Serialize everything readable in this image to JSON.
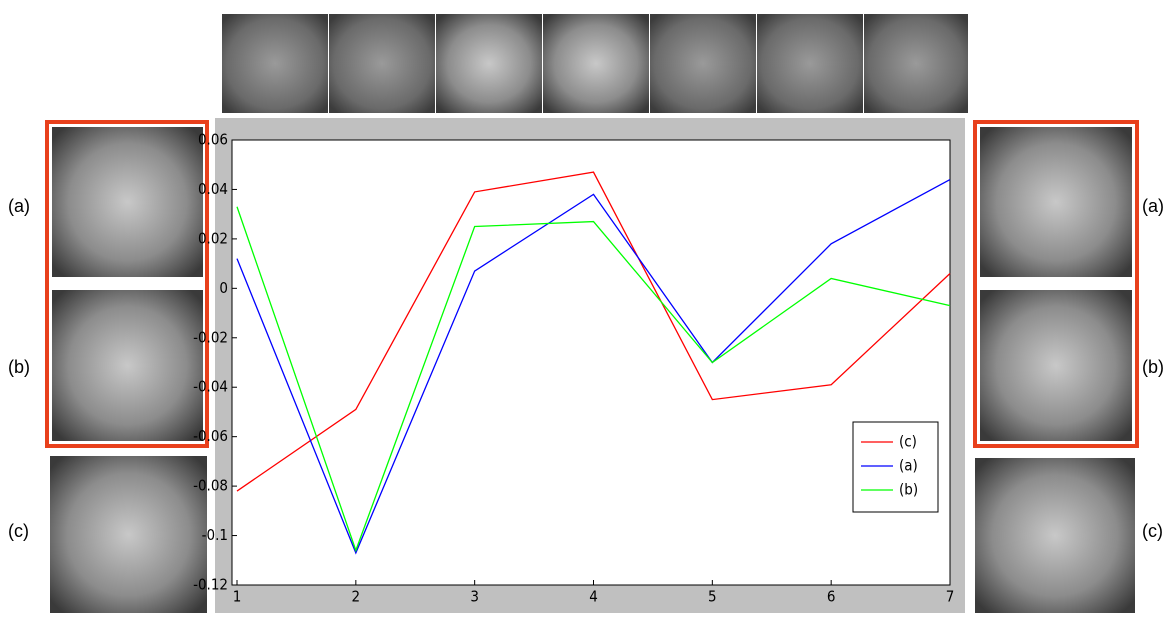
{
  "chart_data": {
    "type": "line",
    "x": [
      1,
      2,
      3,
      4,
      5,
      6,
      7
    ],
    "series": [
      {
        "name": "(c)",
        "color": "#ff0000",
        "values": [
          -0.082,
          -0.049,
          0.039,
          0.047,
          -0.045,
          -0.039,
          0.006
        ]
      },
      {
        "name": "(a)",
        "color": "#0000ff",
        "values": [
          0.012,
          -0.107,
          0.007,
          0.038,
          -0.03,
          0.018,
          0.044
        ]
      },
      {
        "name": "(b)",
        "color": "#00ff00",
        "values": [
          0.033,
          -0.106,
          0.025,
          0.027,
          -0.03,
          0.004,
          -0.007
        ]
      }
    ],
    "xlim": [
      1,
      7
    ],
    "xticks": [
      1,
      2,
      3,
      4,
      5,
      6,
      7
    ],
    "ylim": [
      -0.12,
      0.06
    ],
    "yticks": [
      0.06,
      0.04,
      0.02,
      0,
      -0.02,
      -0.04,
      -0.06,
      -0.08,
      -0.1,
      -0.12
    ],
    "legend": "lower right"
  },
  "left_labels": [
    "(a)",
    "(b)",
    "(c)"
  ],
  "right_labels": [
    "(a)",
    "(b)",
    "(c)"
  ]
}
